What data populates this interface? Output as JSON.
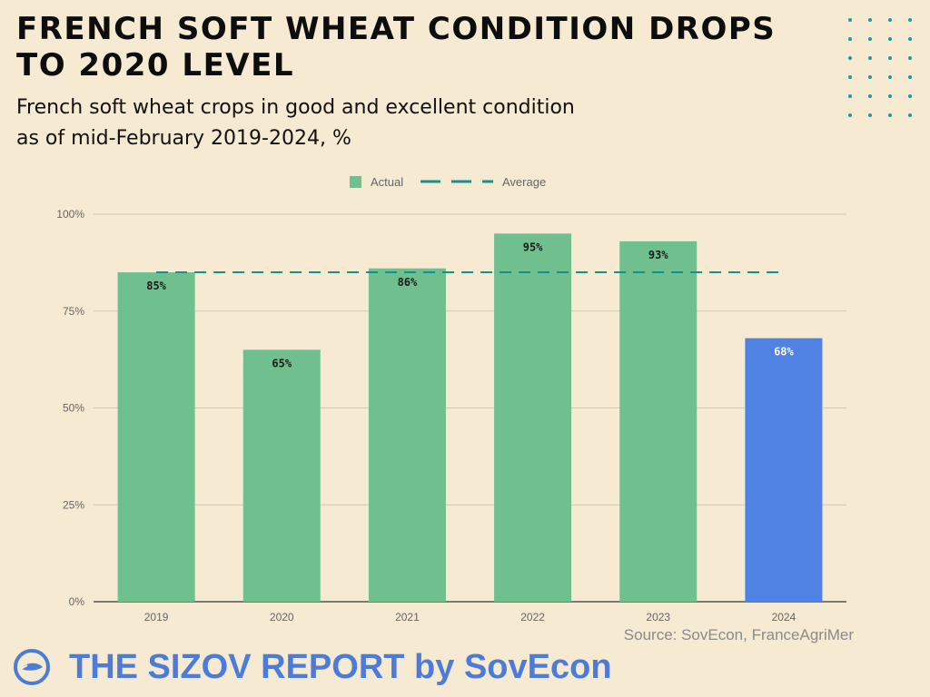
{
  "header": {
    "title_lines": [
      "FRENCH SOFT WHEAT CONDITION DROPS",
      "TO 2020 LEVEL"
    ],
    "subtitle_lines": [
      "French soft wheat crops in good and excellent condition",
      "as of mid-February 2019-2024, %"
    ]
  },
  "colors": {
    "actual": "#6fbf8f",
    "highlight": "#4f82e3",
    "average": "#14918f",
    "brand": "#4c7bd8",
    "dots": "#1a9a98"
  },
  "chart_data": {
    "type": "bar",
    "categories": [
      "2019",
      "2020",
      "2021",
      "2022",
      "2023",
      "2024"
    ],
    "series": [
      {
        "name": "Actual",
        "values": [
          85,
          65,
          86,
          95,
          93,
          68
        ],
        "labels": [
          "85%",
          "65%",
          "86%",
          "95%",
          "93%",
          "68%"
        ]
      },
      {
        "name": "Average",
        "type": "line",
        "style": "dashed",
        "values": [
          85,
          85,
          85,
          85,
          85,
          85
        ]
      }
    ],
    "highlight_category": "2024",
    "ylim": [
      0,
      100
    ],
    "yticks": [
      0,
      25,
      50,
      75,
      100
    ],
    "ytick_labels": [
      "0%",
      "25%",
      "50%",
      "75%",
      "100%"
    ],
    "grid": true,
    "legend": "top-center",
    "legend_entries": [
      "Actual",
      "Average"
    ]
  },
  "footer": {
    "source": "Source: SovEcon, FranceAgriMer",
    "brand": "THE SIZOV REPORT by SovEcon",
    "logo_icon": "sovecon-logo-icon",
    "decor_icon": "dot-grid-icon"
  }
}
